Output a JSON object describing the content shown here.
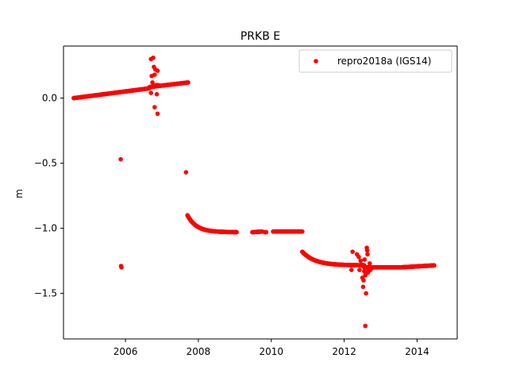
{
  "chart_data": {
    "type": "scatter",
    "title": "PRKB E",
    "xlabel": "",
    "ylabel": "m",
    "xlim": [
      2004.3,
      2015.1
    ],
    "ylim": [
      -1.85,
      0.4
    ],
    "x_ticks": [
      2006,
      2008,
      2010,
      2012,
      2014
    ],
    "x_tick_labels": [
      "2006",
      "2008",
      "2010",
      "2012",
      "2014"
    ],
    "y_ticks": [
      0.0,
      -0.5,
      -1.0,
      -1.5
    ],
    "y_tick_labels": [
      "0.0",
      "−0.5",
      "−1.0",
      "−1.5"
    ],
    "grid": false,
    "legend_position": "top-right",
    "series": [
      {
        "name": "repro2018a (IGS14)",
        "color": "#ff0000",
        "marker": "circle",
        "segments": [
          {
            "x_start": 2004.58,
            "x_end": 2006.65,
            "y_start": 0.0,
            "y_end": 0.075,
            "step": 0.01
          },
          {
            "x_start": 2006.66,
            "x_end": 2007.72,
            "y_start": 0.085,
            "y_end": 0.12,
            "step": 0.01
          },
          {
            "x_start": 2007.7,
            "x_end": 2009.05,
            "y_start": -0.9,
            "y_end": -1.03,
            "step": 0.008,
            "curve": "decay",
            "decay": 0.25,
            "y_base": -1.03
          },
          {
            "x_start": 2009.48,
            "x_end": 2009.75,
            "y_start": -1.03,
            "y_end": -1.025,
            "step": 0.01
          },
          {
            "x_start": 2009.82,
            "x_end": 2009.86,
            "y_start": -1.03,
            "y_end": -1.03,
            "step": 0.01
          },
          {
            "x_start": 2010.05,
            "x_end": 2010.85,
            "y_start": -1.025,
            "y_end": -1.025,
            "step": 0.008
          },
          {
            "x_start": 2010.85,
            "x_end": 2012.55,
            "y_start": -1.18,
            "y_end": -1.285,
            "step": 0.008,
            "curve": "decay",
            "decay": 0.35,
            "y_base": -1.285
          },
          {
            "x_start": 2012.55,
            "x_end": 2013.55,
            "y_start": -1.3,
            "y_end": -1.3,
            "step": 0.008
          },
          {
            "x_start": 2013.55,
            "x_end": 2014.47,
            "y_start": -1.3,
            "y_end": -1.285,
            "step": 0.008
          }
        ],
        "points": [
          [
            2006.7,
            0.3
          ],
          [
            2006.76,
            0.31
          ],
          [
            2006.78,
            0.24
          ],
          [
            2006.82,
            0.22
          ],
          [
            2006.88,
            0.21
          ],
          [
            2006.72,
            0.17
          ],
          [
            2006.8,
            0.18
          ],
          [
            2006.74,
            0.12
          ],
          [
            2006.84,
            0.1
          ],
          [
            2006.9,
            0.1
          ],
          [
            2006.7,
            0.04
          ],
          [
            2006.86,
            0.03
          ],
          [
            2006.8,
            -0.07
          ],
          [
            2006.88,
            -0.12
          ],
          [
            2005.87,
            -0.47
          ],
          [
            2005.88,
            -1.29
          ],
          [
            2005.89,
            -1.3
          ],
          [
            2007.66,
            -0.57
          ],
          [
            2012.23,
            -1.18
          ],
          [
            2012.35,
            -1.2
          ],
          [
            2012.4,
            -1.22
          ],
          [
            2012.45,
            -1.25
          ],
          [
            2012.48,
            -1.28
          ],
          [
            2012.5,
            -1.38
          ],
          [
            2012.52,
            -1.45
          ],
          [
            2012.53,
            -1.4
          ],
          [
            2012.56,
            -1.24
          ],
          [
            2012.58,
            -1.36
          ],
          [
            2012.6,
            -1.5
          ],
          [
            2012.62,
            -1.15
          ],
          [
            2012.63,
            -1.17
          ],
          [
            2012.64,
            -1.2
          ],
          [
            2012.66,
            -1.33
          ],
          [
            2012.58,
            -1.75
          ],
          [
            2012.7,
            -1.27
          ],
          [
            2012.72,
            -1.32
          ],
          [
            2012.42,
            -1.32
          ],
          [
            2012.75,
            -1.3
          ],
          [
            2012.2,
            -1.32
          ],
          [
            2012.55,
            -1.33
          ],
          [
            2012.65,
            -1.34
          ]
        ]
      }
    ]
  }
}
